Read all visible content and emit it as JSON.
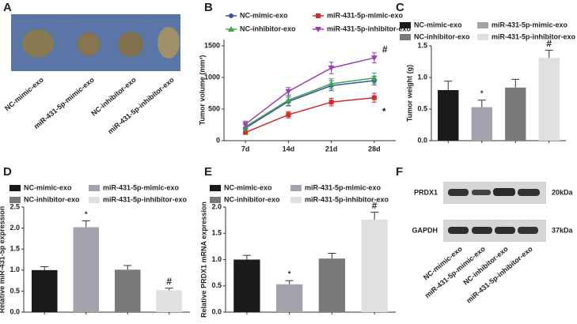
{
  "panel_labels": [
    "A",
    "B",
    "C",
    "D",
    "E",
    "F"
  ],
  "photo": {
    "labels": [
      "NC-mimic-exo",
      "miR-431-5p-mimic-exo",
      "NC-inhibitor-exo",
      "miR-431-5p-inhibitor-exo"
    ]
  },
  "chart_data": [
    {
      "type": "line",
      "ylabel": "Tumor volume (mm³)",
      "categories": [
        "7d",
        "14d",
        "21d",
        "28d"
      ],
      "ylim": [
        0,
        1600
      ],
      "yticks": [
        0,
        500,
        1000,
        1500
      ],
      "series": [
        {
          "name": "NC-mimic-exo",
          "color": "#3a50a8",
          "marker": "circle",
          "values": [
            200,
            620,
            870,
            950
          ],
          "errors": [
            50,
            70,
            80,
            70
          ]
        },
        {
          "name": "miR-431-5p-mimic-exo",
          "color": "#d42a2a",
          "marker": "square",
          "values": [
            130,
            410,
            610,
            680
          ],
          "errors": [
            30,
            50,
            60,
            70
          ]
        },
        {
          "name": "NC-inhibitor-exo",
          "color": "#3aa84a",
          "marker": "triangle",
          "values": [
            220,
            640,
            900,
            990
          ],
          "errors": [
            60,
            80,
            80,
            80
          ]
        },
        {
          "name": "miR-431-5p-inhibitor-exo",
          "color": "#9a40b0",
          "marker": "tri-down",
          "values": [
            260,
            780,
            1150,
            1310
          ],
          "errors": [
            50,
            60,
            90,
            80
          ]
        }
      ],
      "annotations": [
        {
          "series": "miR-431-5p-inhibitor-exo",
          "text": "#"
        },
        {
          "series": "miR-431-5p-mimic-exo",
          "text": "*"
        }
      ]
    },
    {
      "type": "bar",
      "ylabel": "Tumor weight (g)",
      "categories": [
        "NC-mimic-exo",
        "miR-431-5p-mimic-exo",
        "NC-inhibitor-exo",
        "miR-431-5p-inhibitor-exo"
      ],
      "colors": [
        "#1a1a1a",
        "#a3a3ad",
        "#7a7a7a",
        "#e0e0e0"
      ],
      "values": [
        0.8,
        0.53,
        0.84,
        1.31
      ],
      "errors": [
        0.14,
        0.11,
        0.13,
        0.12
      ],
      "ylim": [
        0,
        1.5
      ],
      "yticks": [
        {
          "value": 0,
          "label": "0.0"
        },
        0.5,
        {
          "value": 1,
          "label": "1.0"
        },
        1.5
      ],
      "annotations": [
        {
          "category": "miR-431-5p-mimic-exo",
          "text": "*"
        },
        {
          "category": "miR-431-5p-inhibitor-exo",
          "text": "#"
        }
      ]
    },
    {
      "type": "bar",
      "ylabel": "Relative miR-431-5p expression",
      "categories": [
        "NC-mimic-exo",
        "miR-431-5p-mimic-exo",
        "NC-inhibitor-exo",
        "miR-431-5p-inhibitor-exo"
      ],
      "colors": [
        "#1a1a1a",
        "#a3a3ad",
        "#7a7a7a",
        "#e0e0e0"
      ],
      "values": [
        1.0,
        2.02,
        1.01,
        0.52
      ],
      "errors": [
        0.08,
        0.15,
        0.1,
        0.05
      ],
      "ylim": [
        0,
        2.5
      ],
      "yticks": [
        {
          "value": 0,
          "label": "0.0"
        },
        0.5,
        {
          "value": 1,
          "label": "1.0"
        },
        1.5,
        {
          "value": 2,
          "label": "2.0"
        },
        2.5
      ],
      "annotations": [
        {
          "category": "miR-431-5p-mimic-exo",
          "text": "*"
        },
        {
          "category": "miR-431-5p-inhibitor-exo",
          "text": "#"
        }
      ]
    },
    {
      "type": "bar",
      "ylabel": "Relative PRDX1 mRNA expression",
      "categories": [
        "NC-mimic-exo",
        "miR-431-5p-mimic-exo",
        "NC-inhibitor-exo",
        "miR-431-5p-inhibitor-exo"
      ],
      "colors": [
        "#1a1a1a",
        "#a3a3ad",
        "#7a7a7a",
        "#e0e0e0"
      ],
      "values": [
        1.0,
        0.53,
        1.02,
        1.76
      ],
      "errors": [
        0.08,
        0.07,
        0.1,
        0.14
      ],
      "ylim": [
        0,
        2
      ],
      "yticks": [
        {
          "value": 0,
          "label": "0.0"
        },
        0.5,
        {
          "value": 1,
          "label": "1.0"
        },
        1.5,
        {
          "value": 2,
          "label": "2.0"
        }
      ],
      "annotations": [
        {
          "category": "miR-431-5p-mimic-exo",
          "text": "*"
        },
        {
          "category": "miR-431-5p-inhibitor-exo",
          "text": "#"
        }
      ]
    }
  ],
  "blot": {
    "rows": [
      {
        "protein": "PRDX1",
        "size": "20kDa"
      },
      {
        "protein": "GAPDH",
        "size": "37kDa"
      }
    ],
    "lanes": [
      "NC-mimic-exo",
      "miR-431-5p-mimic-exo",
      "NC-inhibitor-exo",
      "miR-431-5p-inhibitor-exo"
    ]
  }
}
